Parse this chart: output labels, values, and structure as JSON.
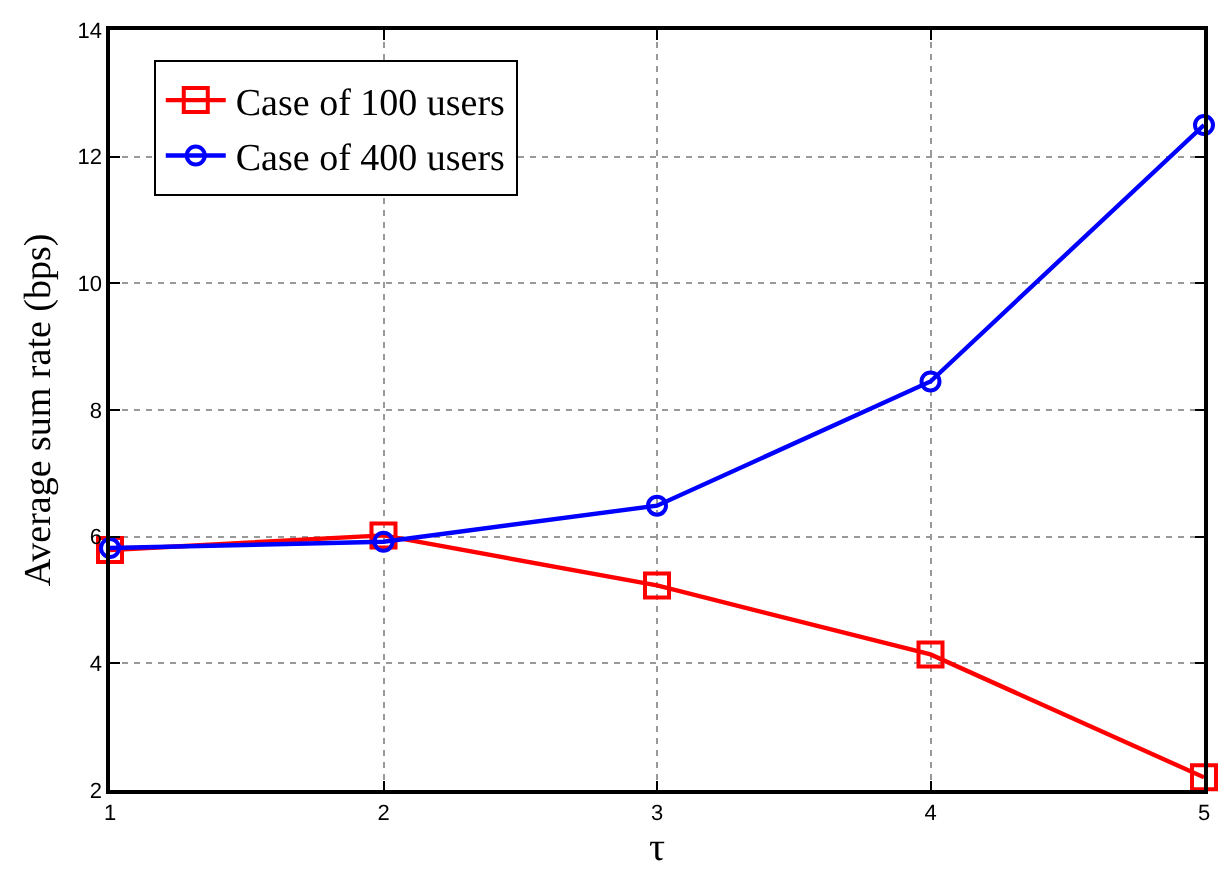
{
  "chart_data": {
    "type": "line",
    "xlabel": "τ",
    "ylabel": "Average sum rate (bps)",
    "x": [
      1,
      2,
      3,
      4,
      5
    ],
    "series": [
      {
        "name": "Case of 100 users",
        "color": "#ff0000",
        "marker": "square",
        "values": [
          5.79,
          6.02,
          5.23,
          4.14,
          2.2
        ]
      },
      {
        "name": "Case of 400 users",
        "color": "#0000ff",
        "marker": "circle",
        "values": [
          5.82,
          5.92,
          6.49,
          8.45,
          12.5
        ]
      }
    ],
    "xlim": [
      1,
      5
    ],
    "xticks": [
      1,
      2,
      3,
      4,
      5
    ],
    "ylim": [
      2,
      14
    ],
    "yticks": [
      2,
      4,
      6,
      8,
      10,
      12,
      14
    ],
    "grid": true,
    "legend": "top left",
    "line_style": "solid"
  }
}
